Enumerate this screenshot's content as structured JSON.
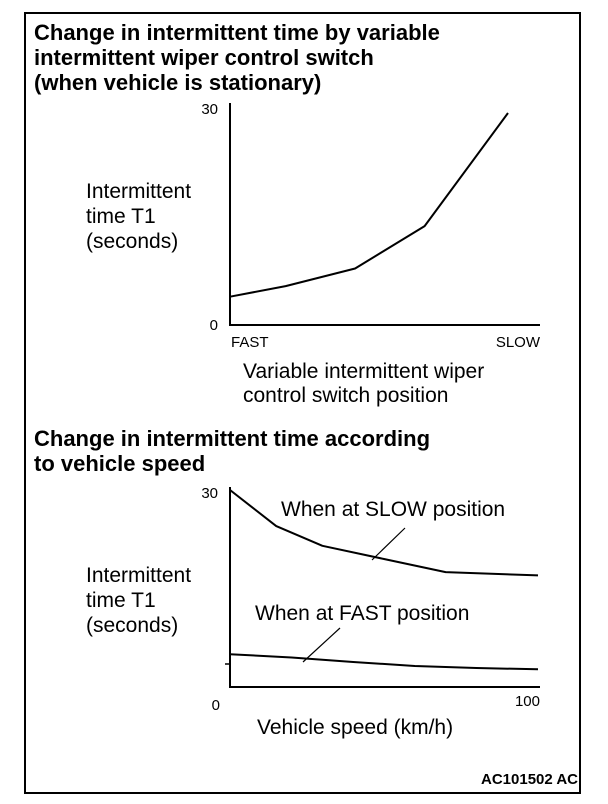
{
  "chart_data": [
    {
      "type": "line",
      "title": "Change in intermittent time by variable intermittent wiper control switch (when vehicle is stationary)",
      "title_lines": [
        "Change in intermittent time by variable",
        "intermittent wiper control switch",
        "(when vehicle is stationary)"
      ],
      "ylabel_lines": [
        "Intermittent",
        "time T1",
        "(seconds)"
      ],
      "xlabel_lines": [
        "Variable intermittent wiper",
        "control switch position"
      ],
      "ylim": [
        0,
        30
      ],
      "y_ticks": [
        "30",
        "0"
      ],
      "x_tick_labels": {
        "start": "FAST",
        "end": "SLOW"
      },
      "xlim": [
        0,
        1
      ],
      "series": [
        {
          "x": [
            0,
            0.2,
            0.45,
            0.7,
            1.0
          ],
          "values": [
            4,
            5.5,
            8,
            14,
            30
          ]
        }
      ],
      "grid": false
    },
    {
      "type": "line",
      "title": "Change in intermittent time according to vehicle speed",
      "title_lines": [
        "Change in intermittent time according",
        "to vehicle speed"
      ],
      "ylabel_lines": [
        "Intermittent",
        "time T1",
        "(seconds)"
      ],
      "xlabel": "Vehicle speed  (km/h)",
      "ylim": [
        0,
        30
      ],
      "y_ticks": [
        "30",
        "0"
      ],
      "xlim": [
        0,
        100
      ],
      "x_ticks": [
        "0",
        "100"
      ],
      "series": [
        {
          "name": "When at SLOW position",
          "x": [
            0,
            15,
            30,
            50,
            70,
            100
          ],
          "values": [
            30,
            24.5,
            21.5,
            19.5,
            17.5,
            17
          ]
        },
        {
          "name": "When at FAST position",
          "x": [
            0,
            20,
            40,
            60,
            80,
            100
          ],
          "values": [
            5,
            4.5,
            3.8,
            3.2,
            2.9,
            2.7
          ]
        }
      ],
      "grid": false
    }
  ],
  "figure_code": "AC101502 AC"
}
